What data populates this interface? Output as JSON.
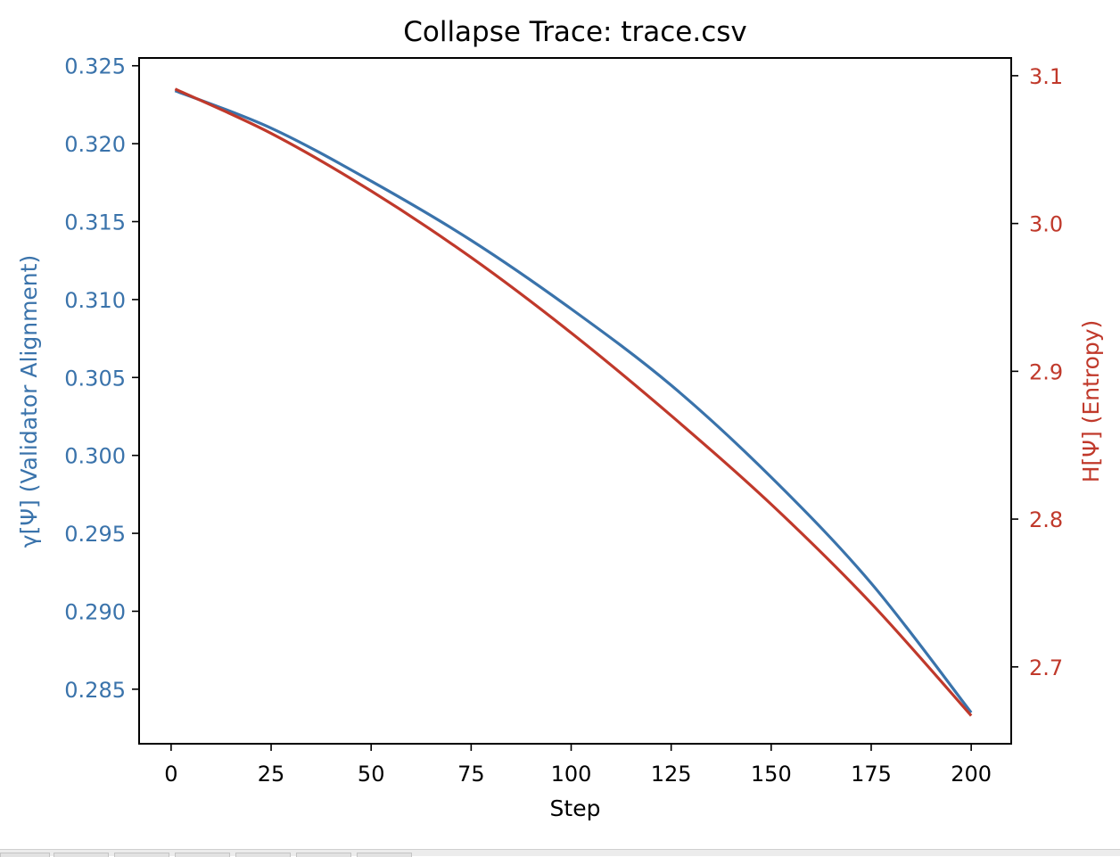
{
  "chart_data": {
    "type": "line",
    "title": "Collapse Trace: trace.csv",
    "xlabel": "Step",
    "xlim": [
      -8,
      210
    ],
    "xticks": [
      0,
      25,
      50,
      75,
      100,
      125,
      150,
      175,
      200
    ],
    "xticklabels": [
      "0",
      "25",
      "50",
      "75",
      "100",
      "125",
      "150",
      "175",
      "200"
    ],
    "grid": false,
    "y_left": {
      "label": "γ[Ψ] (Validator Alignment)",
      "color": "#3a73ab",
      "lim": [
        0.2815,
        0.3255
      ],
      "ticks": [
        0.285,
        0.29,
        0.295,
        0.3,
        0.305,
        0.31,
        0.315,
        0.32,
        0.325
      ],
      "ticklabels": [
        "0.285",
        "0.290",
        "0.295",
        "0.300",
        "0.305",
        "0.310",
        "0.315",
        "0.320",
        "0.325"
      ]
    },
    "y_right": {
      "label": "H[Ψ] (Entropy)",
      "color": "#c0392b",
      "lim": [
        2.648,
        3.112
      ],
      "ticks": [
        2.7,
        2.8,
        2.9,
        3.0,
        3.1
      ],
      "ticklabels": [
        "2.7",
        "2.8",
        "2.9",
        "3.0",
        "3.1"
      ]
    },
    "series": [
      {
        "axis": "left",
        "color": "#3a73ab",
        "x": [
          1,
          25,
          50,
          75,
          100,
          125,
          150,
          175,
          200
        ],
        "values": [
          0.3234,
          0.321,
          0.3176,
          0.3138,
          0.3094,
          0.3045,
          0.2986,
          0.2918,
          0.2835
        ]
      },
      {
        "axis": "right",
        "color": "#c0392b",
        "x": [
          1,
          25,
          50,
          75,
          100,
          125,
          150,
          175,
          200
        ],
        "values": [
          3.091,
          3.061,
          3.022,
          2.977,
          2.926,
          2.87,
          2.81,
          2.743,
          2.667
        ]
      }
    ]
  }
}
